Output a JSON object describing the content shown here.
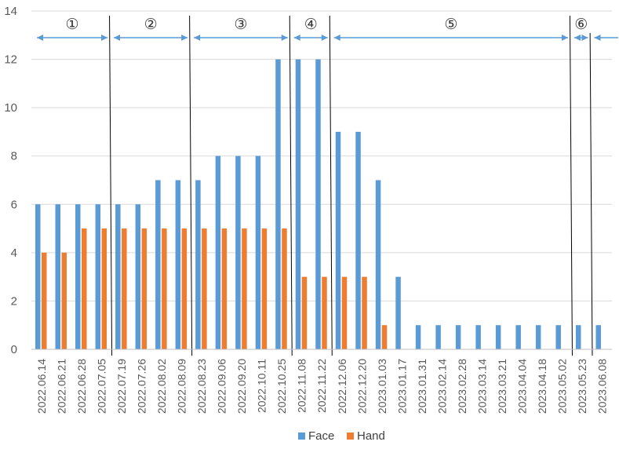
{
  "chart_data": {
    "type": "bar",
    "categories": [
      "2022.06.14",
      "2022.06.21",
      "2022.06.28",
      "2022.07.05",
      "2022.07.19",
      "2022.07.26",
      "2022.08.02",
      "2022.08.09",
      "2022.08.23",
      "2022.09.06",
      "2022.09.20",
      "2022.10.11",
      "2022.10.25",
      "2022.11.08",
      "2022.11.22",
      "2022.12.06",
      "2022.12.20",
      "2023.01.03",
      "2023.01.17",
      "2023.01.31",
      "2023.02.14",
      "2023.02.28",
      "2023.03.14",
      "2023.03.21",
      "2023.04.04",
      "2023.04.18",
      "2023.05.02",
      "2023.05.23",
      "2023.06.08"
    ],
    "series": [
      {
        "name": "Face",
        "color": "#5B9BD5",
        "values": [
          6,
          6,
          6,
          6,
          6,
          6,
          7,
          7,
          7,
          8,
          8,
          8,
          12,
          12,
          12,
          9,
          9,
          7,
          3,
          1,
          1,
          1,
          1,
          1,
          1,
          1,
          1,
          1,
          1
        ]
      },
      {
        "name": "Hand",
        "color": "#ED7D31",
        "values": [
          4,
          4,
          5,
          5,
          5,
          5,
          5,
          5,
          5,
          5,
          5,
          5,
          5,
          3,
          3,
          3,
          3,
          1,
          0,
          0,
          0,
          0,
          0,
          0,
          0,
          0,
          0,
          0,
          0
        ]
      }
    ],
    "ylim": [
      0,
      14
    ],
    "yticks": [
      0,
      2,
      4,
      6,
      8,
      10,
      12,
      14
    ],
    "grid": true,
    "legend_position": "bottom",
    "phases": [
      {
        "label": "①",
        "start_after_index": -1,
        "end_after_index": 3
      },
      {
        "label": "②",
        "start_after_index": 3,
        "end_after_index": 7
      },
      {
        "label": "③",
        "start_after_index": 7,
        "end_after_index": 12
      },
      {
        "label": "④",
        "start_after_index": 12,
        "end_after_index": 14
      },
      {
        "label": "⑤",
        "start_after_index": 14,
        "end_after_index": 26
      },
      {
        "label": "⑥",
        "start_after_index": 26,
        "end_after_index": 27
      },
      {
        "label": "",
        "start_after_index": 27,
        "end_after_index": 28
      }
    ],
    "divider_after_indices": [
      3,
      7,
      12,
      14,
      26,
      27
    ],
    "arrow_color": "#5B9BD5"
  }
}
